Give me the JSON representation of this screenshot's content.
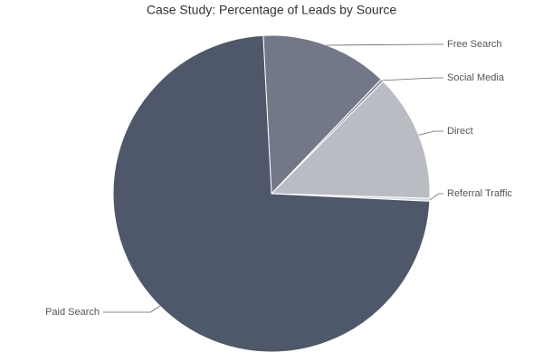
{
  "chart_data": {
    "type": "pie",
    "title": "Case Study: Percentage of Leads by Source",
    "categories": [
      "Free Search",
      "Social Media",
      "Direct",
      "Referral Traffic",
      "Paid Search"
    ],
    "values": [
      13,
      0.3,
      13,
      0.3,
      73.4
    ],
    "colors": [
      "#737889",
      "#8e93a2",
      "#babcc4",
      "#d5d7dc",
      "#4f586b"
    ]
  }
}
